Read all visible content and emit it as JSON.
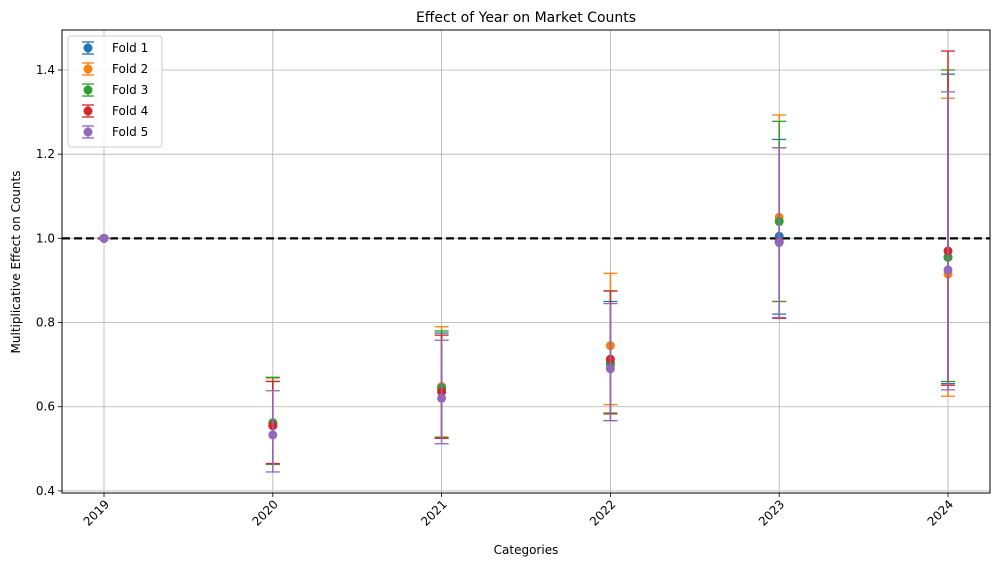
{
  "chart_data": {
    "type": "scatter",
    "title": "Effect of Year on Market Counts",
    "xlabel": "Categories",
    "ylabel": "Multiplicative Effect on Counts",
    "categories": [
      "2019",
      "2020",
      "2021",
      "2022",
      "2023",
      "2024"
    ],
    "ylim": [
      0.395,
      1.495
    ],
    "yticks": [
      0.4,
      0.6,
      0.8,
      1.0,
      1.2,
      1.4
    ],
    "ytick_labels": [
      "0.4",
      "0.6",
      "0.8",
      "1.0",
      "1.2",
      "1.4"
    ],
    "grid": true,
    "legend_position": "upper-left",
    "reference_line": {
      "y": 1.0,
      "style": "dashed",
      "color": "#000000"
    },
    "series": [
      {
        "name": "Fold 1",
        "color": "#1f77b4",
        "values": [
          1.0,
          0.56,
          0.64,
          0.7,
          1.005,
          0.955
        ],
        "lower": [
          1.0,
          0.463,
          0.525,
          0.567,
          0.82,
          0.655
        ],
        "upper": [
          1.0,
          0.66,
          0.775,
          0.85,
          1.235,
          1.39
        ]
      },
      {
        "name": "Fold 2",
        "color": "#ff7f0e",
        "values": [
          1.0,
          0.555,
          0.648,
          0.745,
          1.05,
          0.915
        ],
        "lower": [
          1.0,
          0.463,
          0.528,
          0.605,
          0.85,
          0.625
        ],
        "upper": [
          1.0,
          0.668,
          0.79,
          0.917,
          1.293,
          1.333
        ]
      },
      {
        "name": "Fold 3",
        "color": "#2ca02c",
        "values": [
          1.0,
          0.562,
          0.645,
          0.705,
          1.04,
          0.955
        ],
        "lower": [
          1.0,
          0.463,
          0.527,
          0.585,
          0.85,
          0.66
        ],
        "upper": [
          1.0,
          0.67,
          0.78,
          0.875,
          1.278,
          1.4
        ]
      },
      {
        "name": "Fold 4",
        "color": "#d62728",
        "values": [
          1.0,
          0.555,
          0.635,
          0.713,
          0.992,
          0.97
        ],
        "lower": [
          1.0,
          0.465,
          0.525,
          0.583,
          0.81,
          0.651
        ],
        "upper": [
          1.0,
          0.66,
          0.77,
          0.875,
          1.215,
          1.445
        ]
      },
      {
        "name": "Fold 5",
        "color": "#9467bd",
        "values": [
          1.0,
          0.533,
          0.62,
          0.69,
          0.99,
          0.925
        ],
        "lower": [
          1.0,
          0.445,
          0.512,
          0.567,
          0.812,
          0.64
        ],
        "upper": [
          1.0,
          0.638,
          0.758,
          0.845,
          1.215,
          1.348
        ]
      }
    ]
  }
}
